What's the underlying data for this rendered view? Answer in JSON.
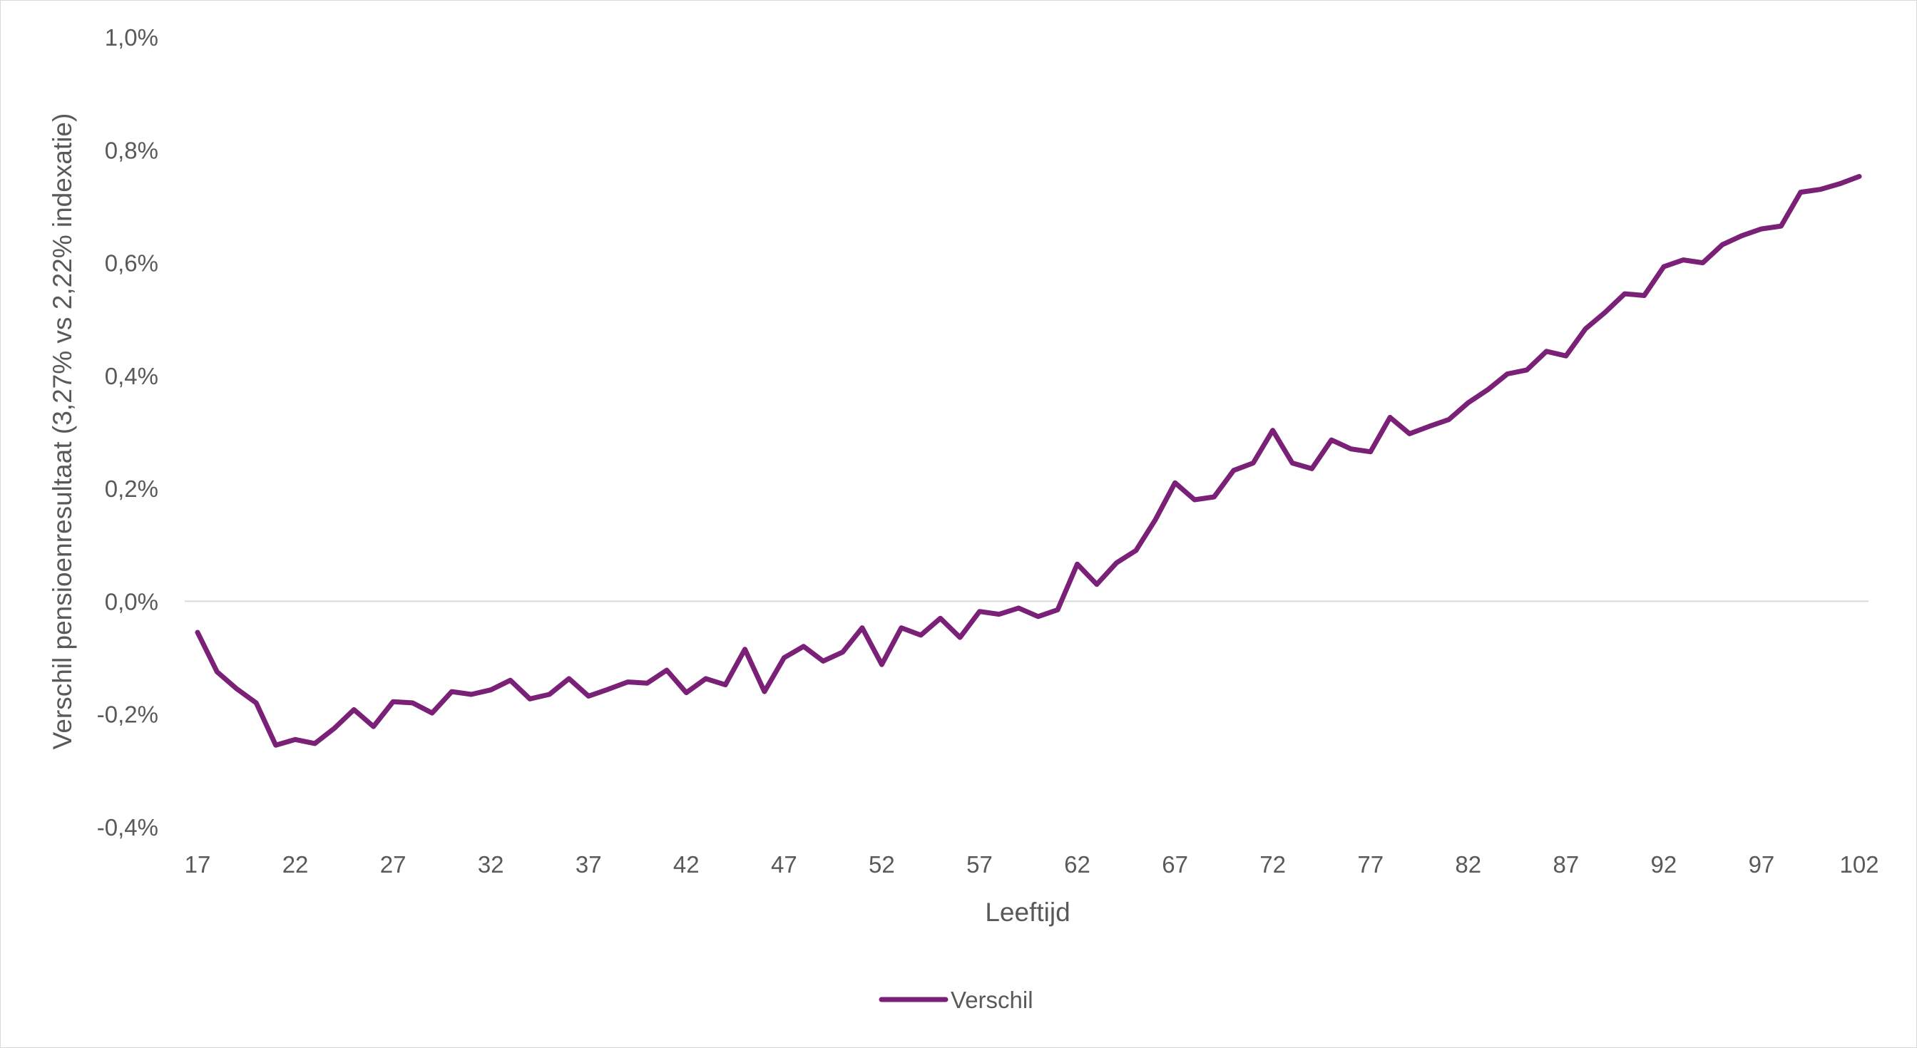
{
  "chart_data": {
    "type": "line",
    "title": "",
    "xlabel": "Leeftijd",
    "ylabel": "Verschil pensioenresultaat (3,27% vs 2,22% indexatie)",
    "x_tick_labels": [
      "17",
      "22",
      "27",
      "32",
      "37",
      "42",
      "47",
      "52",
      "57",
      "62",
      "67",
      "72",
      "77",
      "82",
      "87",
      "92",
      "97",
      "102"
    ],
    "y_tick_labels": [
      "-0,4%",
      "-0,2%",
      "0,0%",
      "0,2%",
      "0,4%",
      "0,6%",
      "0,8%",
      "1,0%"
    ],
    "y_ticks": [
      -0.4,
      -0.2,
      0.0,
      0.2,
      0.4,
      0.6,
      0.8,
      1.0
    ],
    "ylim": [
      -0.4,
      1.0
    ],
    "xlim": [
      17,
      102
    ],
    "grid": false,
    "zero_line": true,
    "legend_position": "bottom",
    "x": [
      17,
      18,
      19,
      20,
      21,
      22,
      23,
      24,
      25,
      26,
      27,
      28,
      29,
      30,
      31,
      32,
      33,
      34,
      35,
      36,
      37,
      38,
      39,
      40,
      41,
      42,
      43,
      44,
      45,
      46,
      47,
      48,
      49,
      50,
      51,
      52,
      53,
      54,
      55,
      56,
      57,
      58,
      59,
      60,
      61,
      62,
      63,
      64,
      65,
      66,
      67,
      68,
      69,
      70,
      71,
      72,
      73,
      74,
      75,
      76,
      77,
      78,
      79,
      80,
      81,
      82,
      83,
      84,
      85,
      86,
      87,
      88,
      89,
      90,
      91,
      92,
      93,
      94,
      95,
      96,
      97,
      98,
      99,
      100,
      101,
      102
    ],
    "series": [
      {
        "name": "Verschil",
        "color": "#7b2077",
        "values": [
          -0.055,
          -0.125,
          -0.155,
          -0.18,
          -0.255,
          -0.245,
          -0.252,
          -0.225,
          -0.192,
          -0.222,
          -0.178,
          -0.18,
          -0.198,
          -0.16,
          -0.165,
          -0.157,
          -0.14,
          -0.173,
          -0.165,
          -0.137,
          -0.168,
          -0.156,
          -0.143,
          -0.145,
          -0.122,
          -0.162,
          -0.137,
          -0.148,
          -0.085,
          -0.16,
          -0.1,
          -0.08,
          -0.106,
          -0.09,
          -0.047,
          -0.112,
          -0.047,
          -0.06,
          -0.03,
          -0.064,
          -0.018,
          -0.023,
          -0.012,
          -0.027,
          -0.015,
          0.066,
          0.03,
          0.068,
          0.09,
          0.145,
          0.21,
          0.18,
          0.185,
          0.232,
          0.245,
          0.303,
          0.245,
          0.235,
          0.286,
          0.27,
          0.265,
          0.326,
          0.297,
          0.31,
          0.322,
          0.352,
          0.375,
          0.403,
          0.41,
          0.443,
          0.435,
          0.483,
          0.512,
          0.545,
          0.542,
          0.593,
          0.605,
          0.6,
          0.632,
          0.648,
          0.66,
          0.665,
          0.725,
          0.73,
          0.74,
          0.753
        ]
      }
    ]
  }
}
